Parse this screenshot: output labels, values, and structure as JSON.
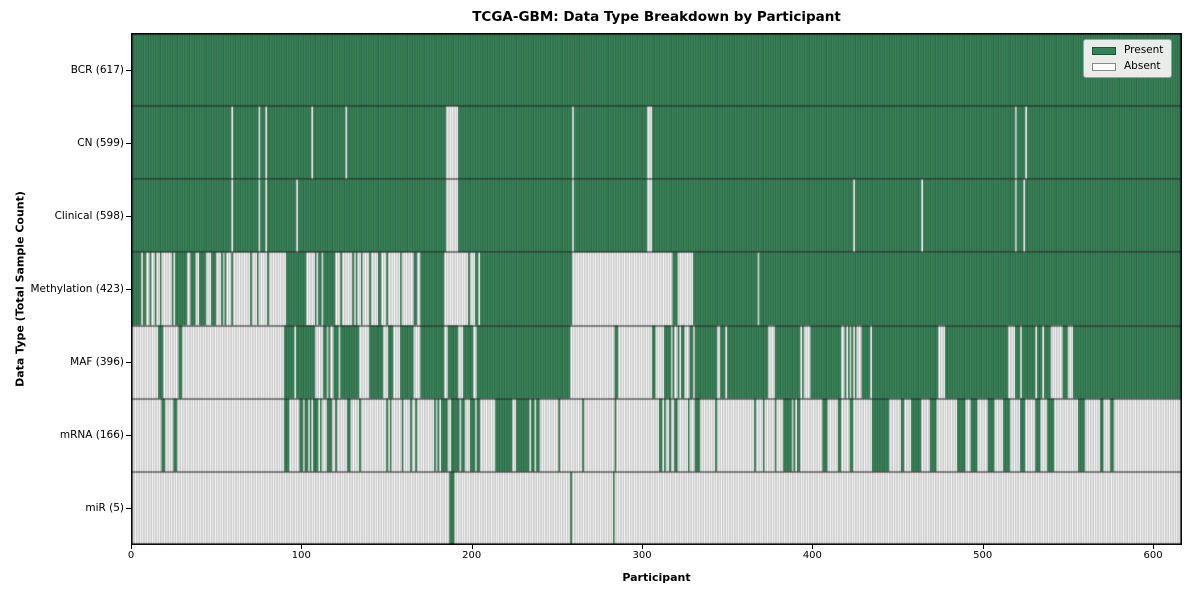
{
  "title": "TCGA-GBM: Data Type Breakdown by Participant",
  "xlabel": "Participant",
  "ylabel": "Data Type (Total Sample Count)",
  "x_ticks": [
    0,
    100,
    200,
    300,
    400,
    500,
    600
  ],
  "legend": {
    "items": [
      {
        "label": "Present",
        "color": "#348257"
      },
      {
        "label": "Absent",
        "color": "#ffffff"
      }
    ]
  },
  "colors": {
    "present": "#348257",
    "present_edge": "#1d5434",
    "absent": "#ffffff",
    "absent_edge": "#949494",
    "row_separator": "#1a1a1a",
    "plot_border": "#000000",
    "legend_bg": "#e9ece9"
  },
  "chart_data": {
    "type": "heatmap",
    "title": "TCGA-GBM: Data Type Breakdown by Participant",
    "xlabel": "Participant",
    "ylabel": "Data Type (Total Sample Count)",
    "x_range": [
      0,
      617
    ],
    "n_participants": 617,
    "legend": [
      "Present",
      "Absent"
    ],
    "legend_position": "upper right",
    "grid": false,
    "segment_format": "[start_participant, end_participant, state] where 1=present, 0=absent, fraction=approximate share present in a striped mixed region",
    "rows": [
      {
        "label": "BCR (617)",
        "name": "BCR",
        "present_count": 617,
        "segments": [
          [
            0,
            617,
            1
          ]
        ]
      },
      {
        "label": "CN (599)",
        "name": "CN",
        "present_count": 599,
        "segments": [
          [
            0,
            59,
            1
          ],
          [
            59,
            60,
            0
          ],
          [
            60,
            75,
            1
          ],
          [
            75,
            76,
            0
          ],
          [
            76,
            79,
            1
          ],
          [
            79,
            80,
            0
          ],
          [
            80,
            106,
            1
          ],
          [
            106,
            107,
            0
          ],
          [
            107,
            126,
            1
          ],
          [
            126,
            127,
            0
          ],
          [
            127,
            185,
            1
          ],
          [
            185,
            192,
            0
          ],
          [
            192,
            259,
            1
          ],
          [
            259,
            260,
            0
          ],
          [
            260,
            303,
            1
          ],
          [
            303,
            306,
            0
          ],
          [
            306,
            519,
            1
          ],
          [
            519,
            520,
            0
          ],
          [
            520,
            525,
            1
          ],
          [
            525,
            526,
            0
          ],
          [
            526,
            617,
            1
          ]
        ]
      },
      {
        "label": "Clinical (598)",
        "name": "Clinical",
        "present_count": 598,
        "segments": [
          [
            0,
            59,
            1
          ],
          [
            59,
            60,
            0
          ],
          [
            60,
            75,
            1
          ],
          [
            75,
            76,
            0
          ],
          [
            76,
            79,
            1
          ],
          [
            79,
            80,
            0
          ],
          [
            80,
            97,
            1
          ],
          [
            97,
            98,
            0
          ],
          [
            98,
            185,
            1
          ],
          [
            185,
            192,
            0
          ],
          [
            192,
            259,
            1
          ],
          [
            259,
            260,
            0
          ],
          [
            260,
            303,
            1
          ],
          [
            303,
            306,
            0
          ],
          [
            306,
            424,
            1
          ],
          [
            424,
            425,
            0
          ],
          [
            425,
            464,
            1
          ],
          [
            464,
            465,
            0
          ],
          [
            465,
            519,
            1
          ],
          [
            519,
            520,
            0
          ],
          [
            520,
            524,
            1
          ],
          [
            524,
            525,
            0
          ],
          [
            525,
            617,
            1
          ]
        ]
      },
      {
        "label": "Methylation (423)",
        "name": "Methylation",
        "present_count": 423,
        "segments": [
          [
            0,
            6,
            1
          ],
          [
            6,
            26,
            0.45
          ],
          [
            26,
            32,
            1
          ],
          [
            32,
            61,
            0.5
          ],
          [
            61,
            91,
            0.12
          ],
          [
            91,
            102,
            1
          ],
          [
            102,
            113,
            0.5
          ],
          [
            113,
            120,
            1
          ],
          [
            120,
            163,
            0.14
          ],
          [
            163,
            170,
            0.5
          ],
          [
            170,
            184,
            1
          ],
          [
            184,
            198,
            0
          ],
          [
            198,
            206,
            0.5
          ],
          [
            206,
            259,
            1
          ],
          [
            259,
            318,
            0
          ],
          [
            318,
            321,
            1
          ],
          [
            321,
            330,
            0
          ],
          [
            330,
            368,
            1
          ],
          [
            368,
            369,
            0
          ],
          [
            369,
            617,
            1
          ]
        ]
      },
      {
        "label": "MAF (396)",
        "name": "MAF",
        "present_count": 396,
        "segments": [
          [
            0,
            16,
            0
          ],
          [
            16,
            19,
            1
          ],
          [
            19,
            28,
            0
          ],
          [
            28,
            30,
            1
          ],
          [
            30,
            90,
            0
          ],
          [
            90,
            96,
            1
          ],
          [
            96,
            97,
            0
          ],
          [
            97,
            108,
            1
          ],
          [
            108,
            112,
            0
          ],
          [
            112,
            124,
            0.6
          ],
          [
            124,
            134,
            1
          ],
          [
            134,
            140,
            0
          ],
          [
            140,
            148,
            1
          ],
          [
            148,
            158,
            0.4
          ],
          [
            158,
            166,
            1
          ],
          [
            166,
            170,
            0
          ],
          [
            170,
            184,
            1
          ],
          [
            184,
            186,
            0
          ],
          [
            186,
            192,
            1
          ],
          [
            192,
            195,
            0
          ],
          [
            195,
            201,
            1
          ],
          [
            201,
            203,
            0
          ],
          [
            203,
            258,
            1
          ],
          [
            258,
            284,
            0
          ],
          [
            284,
            286,
            1
          ],
          [
            286,
            306,
            0
          ],
          [
            306,
            308,
            1
          ],
          [
            308,
            313,
            0
          ],
          [
            313,
            331,
            0.5
          ],
          [
            331,
            343,
            1
          ],
          [
            343,
            352,
            0.35
          ],
          [
            352,
            374,
            1
          ],
          [
            374,
            378,
            0
          ],
          [
            378,
            393,
            1
          ],
          [
            393,
            401,
            0.3
          ],
          [
            401,
            413,
            1
          ],
          [
            413,
            436,
            0.55
          ],
          [
            436,
            474,
            1
          ],
          [
            474,
            478,
            0
          ],
          [
            478,
            515,
            1
          ],
          [
            515,
            518,
            0
          ],
          [
            518,
            540,
            0.85
          ],
          [
            540,
            547,
            0
          ],
          [
            547,
            550,
            1
          ],
          [
            550,
            553,
            0
          ],
          [
            553,
            617,
            1
          ]
        ]
      },
      {
        "label": "mRNA (166)",
        "name": "mRNA",
        "present_count": 166,
        "segments": [
          [
            0,
            18,
            0
          ],
          [
            18,
            20,
            1
          ],
          [
            20,
            25,
            0
          ],
          [
            25,
            27,
            1
          ],
          [
            27,
            90,
            0
          ],
          [
            90,
            93,
            1
          ],
          [
            93,
            99,
            0
          ],
          [
            99,
            101,
            1
          ],
          [
            101,
            102,
            0
          ],
          [
            102,
            122,
            0.45
          ],
          [
            122,
            127,
            0
          ],
          [
            127,
            129,
            1
          ],
          [
            129,
            137,
            0.5
          ],
          [
            137,
            181,
            0.3
          ],
          [
            181,
            196,
            0.7
          ],
          [
            196,
            206,
            0.35
          ],
          [
            206,
            214,
            0
          ],
          [
            214,
            224,
            1
          ],
          [
            224,
            226,
            0
          ],
          [
            226,
            234,
            1
          ],
          [
            234,
            241,
            0.5
          ],
          [
            241,
            251,
            0
          ],
          [
            251,
            252,
            1
          ],
          [
            252,
            265,
            0
          ],
          [
            265,
            266,
            1
          ],
          [
            266,
            284,
            0
          ],
          [
            284,
            285,
            1
          ],
          [
            285,
            310,
            0
          ],
          [
            310,
            312,
            1
          ],
          [
            312,
            331,
            0.3
          ],
          [
            331,
            334,
            1
          ],
          [
            334,
            343,
            0
          ],
          [
            343,
            344,
            1
          ],
          [
            344,
            363,
            0
          ],
          [
            363,
            383,
            0.2
          ],
          [
            383,
            395,
            0.55
          ],
          [
            395,
            406,
            0
          ],
          [
            406,
            409,
            1
          ],
          [
            409,
            415,
            0
          ],
          [
            415,
            417,
            1
          ],
          [
            417,
            422,
            0
          ],
          [
            422,
            424,
            1
          ],
          [
            424,
            435,
            0
          ],
          [
            435,
            445,
            1
          ],
          [
            445,
            452,
            0
          ],
          [
            452,
            454,
            1
          ],
          [
            454,
            458,
            0
          ],
          [
            458,
            464,
            1
          ],
          [
            464,
            469,
            0
          ],
          [
            469,
            473,
            1
          ],
          [
            473,
            485,
            0
          ],
          [
            485,
            490,
            1
          ],
          [
            490,
            493,
            0
          ],
          [
            493,
            497,
            1
          ],
          [
            497,
            503,
            0
          ],
          [
            503,
            507,
            1
          ],
          [
            507,
            512,
            0
          ],
          [
            512,
            516,
            1
          ],
          [
            516,
            522,
            0
          ],
          [
            522,
            525,
            1
          ],
          [
            525,
            531,
            0
          ],
          [
            531,
            534,
            1
          ],
          [
            534,
            538,
            0
          ],
          [
            538,
            542,
            1
          ],
          [
            542,
            556,
            0
          ],
          [
            556,
            560,
            1
          ],
          [
            560,
            569,
            0
          ],
          [
            569,
            571,
            1
          ],
          [
            571,
            575,
            0
          ],
          [
            575,
            577,
            1
          ],
          [
            577,
            617,
            0
          ]
        ]
      },
      {
        "label": "miR (5)",
        "name": "miR",
        "present_count": 5,
        "segments": [
          [
            0,
            187,
            0
          ],
          [
            187,
            190,
            1
          ],
          [
            190,
            258,
            0
          ],
          [
            258,
            259,
            1
          ],
          [
            259,
            283,
            0
          ],
          [
            283,
            284,
            1
          ],
          [
            284,
            617,
            0
          ]
        ]
      }
    ]
  }
}
